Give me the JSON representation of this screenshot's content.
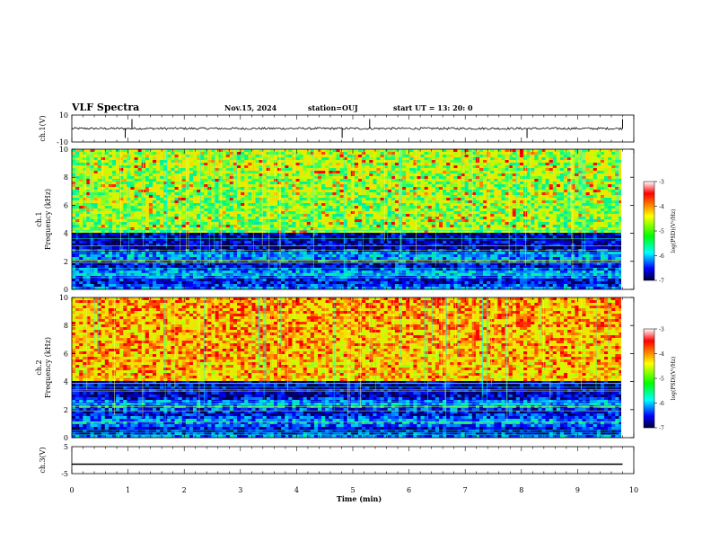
{
  "header": {
    "title": "VLF Spectra",
    "date": "Nov.15, 2024",
    "station": "station=OUJ",
    "start": "start  UT =   13: 20: 0"
  },
  "panels": {
    "ch1_wave": {
      "label": "ch.1(V)",
      "ymax": "10",
      "ymin": "-10"
    },
    "ch1_spec": {
      "label_line1": "ch.1",
      "label_line2": "Frequency (kHz)"
    },
    "ch2_spec": {
      "label_line1": "ch.2",
      "label_line2": "Frequency (kHz)"
    },
    "ch3_wave": {
      "label": "ch.3(V)",
      "ymax": "5",
      "ymin": "-5"
    }
  },
  "colorbar": {
    "label": "log(PSD)(V²/Hz)",
    "ticks": [
      "-3",
      "-4",
      "-5",
      "-6",
      "-7"
    ],
    "colors": [
      "#ffffff",
      "#ff0000",
      "#ffff00",
      "#00ff00",
      "#00ffff",
      "#0000ff",
      "#000033"
    ]
  },
  "chart_data": [
    {
      "type": "line",
      "name": "ch1_waveform",
      "xlim": [
        0,
        10
      ],
      "ylim": [
        -10,
        10
      ],
      "ylabel": "ch.1(V)",
      "description_values": {
        "baseline": 0,
        "spike_times_min": [
          0.95,
          1.07,
          4.81,
          5.3,
          8.1,
          9.8
        ]
      }
    },
    {
      "type": "heatmap",
      "name": "ch1_spectrogram",
      "xlim": [
        0,
        10
      ],
      "ylim": [
        0,
        10
      ],
      "xlabel": "Time (min)",
      "ylabel": "Frequency (kHz)",
      "yticks": [
        0,
        2,
        4,
        6,
        8,
        10
      ],
      "clim": [
        -7,
        -3
      ],
      "data_end_min": 9.8
    },
    {
      "type": "heatmap",
      "name": "ch2_spectrogram",
      "xlim": [
        0,
        10
      ],
      "ylim": [
        0,
        10
      ],
      "xlabel": "Time (min)",
      "ylabel": "Frequency (kHz)",
      "yticks": [
        0,
        2,
        4,
        6,
        8,
        10
      ],
      "clim": [
        -7,
        -3
      ],
      "data_end_min": 9.8
    },
    {
      "type": "line",
      "name": "ch3_waveform",
      "xlim": [
        0,
        10
      ],
      "ylim": [
        -5,
        5
      ],
      "ylabel": "ch.3(V)",
      "series": [
        {
          "x": [
            0,
            9.8
          ],
          "y": [
            -1.5,
            -1.5
          ]
        }
      ]
    }
  ],
  "xaxis": {
    "label": "Time (min)",
    "ticks": [
      "0",
      "1",
      "2",
      "3",
      "4",
      "5",
      "6",
      "7",
      "8",
      "9",
      "10"
    ]
  }
}
